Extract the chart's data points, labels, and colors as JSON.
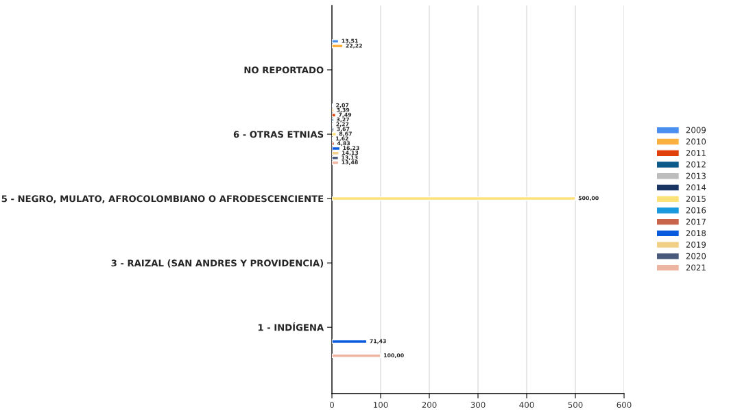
{
  "chart_data": {
    "type": "bar",
    "orientation": "horizontal",
    "categories": [
      "NO REPORTADO",
      "6 - OTRAS ETNIAS",
      "5 - NEGRO, MULATO, AFROCOLOMBIANO O AFRODESCENCIENTE",
      "3 - RAIZAL (SAN ANDRES Y PROVIDENCIA)",
      "1 - INDÍGENA"
    ],
    "series": [
      {
        "name": "2009",
        "color": "#4a8ef0",
        "values": [
          13.51,
          2.07,
          null,
          null,
          null
        ],
        "value_labels": [
          "13,51",
          "2,07",
          null,
          null,
          null
        ]
      },
      {
        "name": "2010",
        "color": "#fbb040",
        "values": [
          22.22,
          3.39,
          null,
          null,
          null
        ],
        "value_labels": [
          "22,22",
          "3,39",
          null,
          null,
          null
        ]
      },
      {
        "name": "2011",
        "color": "#e0400a",
        "values": [
          null,
          7.49,
          null,
          null,
          null
        ],
        "value_labels": [
          null,
          "7,49",
          null,
          null,
          null
        ]
      },
      {
        "name": "2012",
        "color": "#0a5a8a",
        "values": [
          null,
          3.27,
          null,
          null,
          null
        ],
        "value_labels": [
          null,
          "3,27",
          null,
          null,
          null
        ]
      },
      {
        "name": "2013",
        "color": "#bdbdbd",
        "values": [
          null,
          2.27,
          null,
          null,
          null
        ],
        "value_labels": [
          null,
          "2,27",
          null,
          null,
          null
        ]
      },
      {
        "name": "2014",
        "color": "#1a3564",
        "values": [
          null,
          3.67,
          null,
          null,
          null
        ],
        "value_labels": [
          null,
          "3,67",
          null,
          null,
          null
        ]
      },
      {
        "name": "2015",
        "color": "#fde27a",
        "values": [
          null,
          8.67,
          500.0,
          null,
          null
        ],
        "value_labels": [
          null,
          "8,67",
          "500,00",
          null,
          null
        ]
      },
      {
        "name": "2016",
        "color": "#1a9ade",
        "values": [
          null,
          1.62,
          null,
          null,
          null
        ],
        "value_labels": [
          null,
          "1,62",
          null,
          null,
          null
        ]
      },
      {
        "name": "2017",
        "color": "#c8644a",
        "values": [
          null,
          4.83,
          null,
          null,
          null
        ],
        "value_labels": [
          null,
          "4,83",
          null,
          null,
          null
        ]
      },
      {
        "name": "2018",
        "color": "#0a5ade",
        "values": [
          null,
          16.23,
          null,
          null,
          71.43
        ],
        "value_labels": [
          null,
          "16,23",
          null,
          null,
          "71,43"
        ]
      },
      {
        "name": "2019",
        "color": "#f2cf86",
        "values": [
          null,
          14.13,
          null,
          null,
          null
        ],
        "value_labels": [
          null,
          "14,13",
          null,
          null,
          null
        ]
      },
      {
        "name": "2020",
        "color": "#4a5a7a",
        "values": [
          null,
          13.13,
          null,
          null,
          null
        ],
        "value_labels": [
          null,
          "13,13",
          null,
          null,
          null
        ]
      },
      {
        "name": "2021",
        "color": "#eeb4a2",
        "values": [
          null,
          13.48,
          null,
          null,
          100.0
        ],
        "value_labels": [
          null,
          "13,48",
          null,
          null,
          "100,00"
        ]
      }
    ],
    "xlim": [
      0,
      600
    ],
    "xticks": [
      0,
      100,
      200,
      300,
      400,
      500,
      600
    ],
    "grid": "x",
    "legend": "right"
  }
}
